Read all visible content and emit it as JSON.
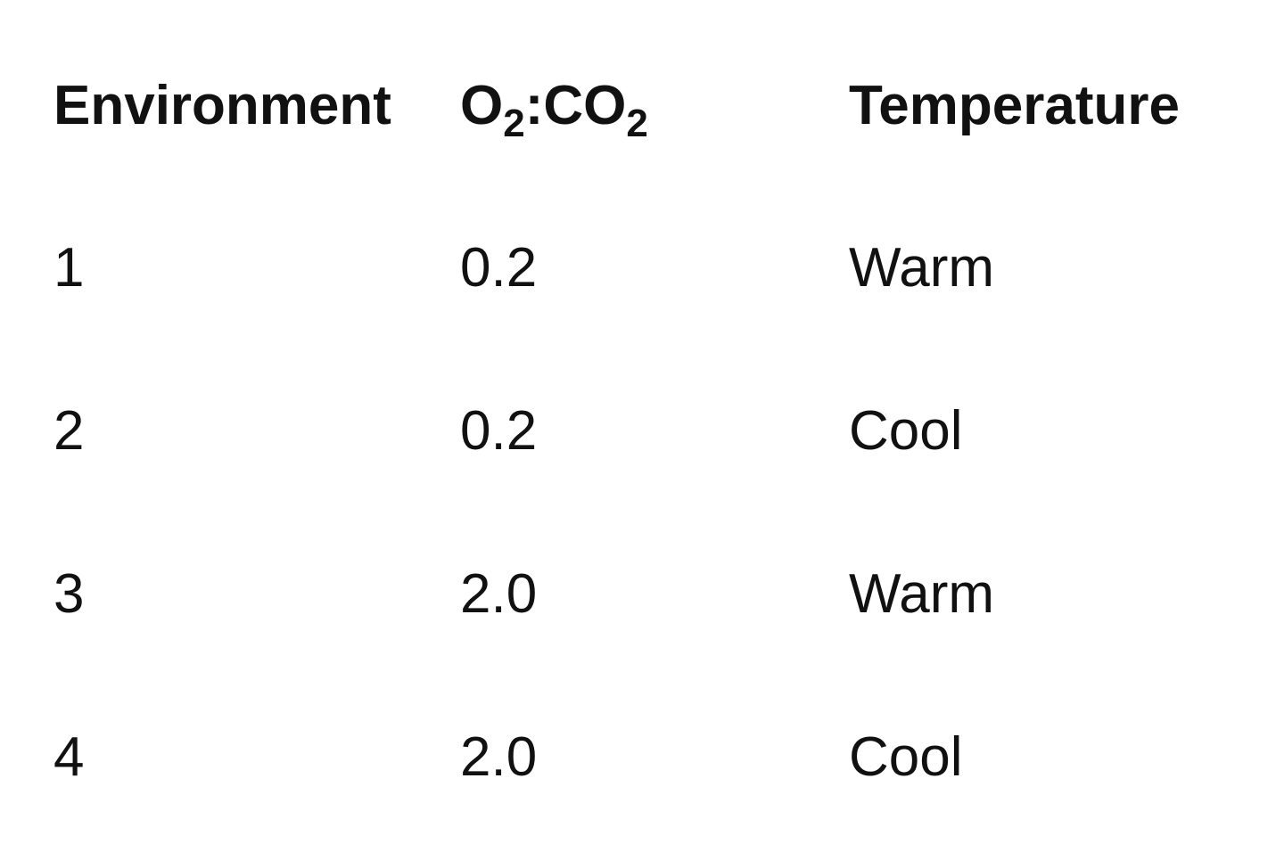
{
  "table": {
    "headers": {
      "environment": "Environment",
      "ratio": {
        "o_symbol": "O",
        "o_subscript": "2",
        "separator": ":",
        "co_symbol": "CO",
        "co_subscript": "2"
      },
      "temperature": "Temperature"
    },
    "rows": [
      {
        "environment": "1",
        "ratio": "0.2",
        "temperature": "Warm"
      },
      {
        "environment": "2",
        "ratio": "0.2",
        "temperature": "Cool"
      },
      {
        "environment": "3",
        "ratio": "2.0",
        "temperature": "Warm"
      },
      {
        "environment": "4",
        "ratio": "2.0",
        "temperature": "Cool"
      }
    ]
  }
}
